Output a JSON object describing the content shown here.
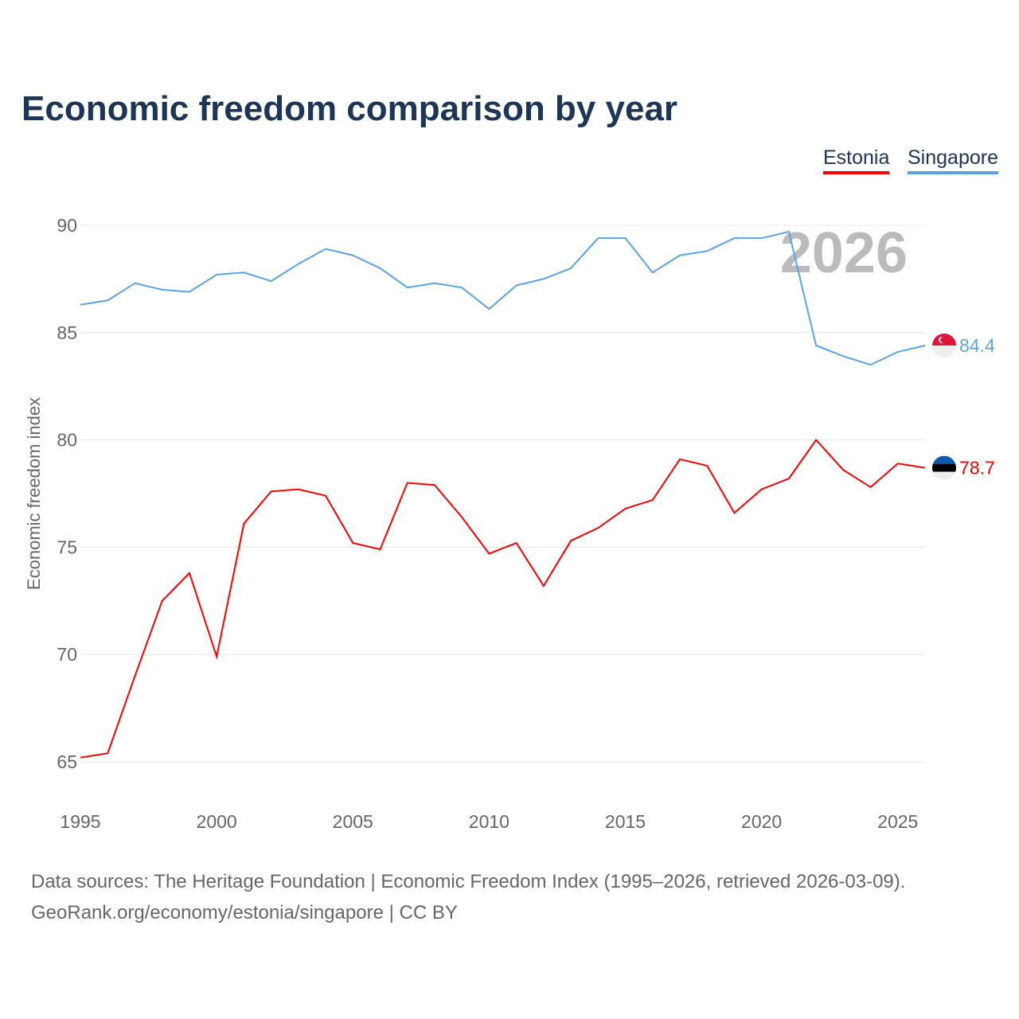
{
  "chart_data": {
    "type": "line",
    "title": "Economic freedom comparison by year",
    "xlabel": "",
    "ylabel": "Economic freedom index",
    "xlim": [
      1995,
      2026
    ],
    "ylim": [
      65,
      90
    ],
    "yticks": [
      65,
      70,
      75,
      80,
      85,
      90
    ],
    "xticks": [
      1995,
      2000,
      2005,
      2010,
      2015,
      2020,
      2025
    ],
    "grid": true,
    "legend_position": "top-right",
    "year_annotation": "2026",
    "x": [
      1995,
      1996,
      1997,
      1998,
      1999,
      2000,
      2001,
      2002,
      2003,
      2004,
      2005,
      2006,
      2007,
      2008,
      2009,
      2010,
      2011,
      2012,
      2013,
      2014,
      2015,
      2016,
      2017,
      2018,
      2019,
      2020,
      2021,
      2022,
      2023,
      2024,
      2025,
      2026
    ],
    "series": [
      {
        "name": "Estonia",
        "color": "#ff0000",
        "end_label": "78.7",
        "values": [
          65.2,
          65.4,
          69.0,
          72.5,
          73.8,
          69.9,
          76.1,
          77.6,
          77.7,
          77.4,
          75.2,
          74.9,
          78.0,
          77.9,
          76.4,
          74.7,
          75.2,
          73.2,
          75.3,
          75.9,
          76.8,
          77.2,
          79.1,
          78.8,
          76.6,
          77.7,
          78.2,
          80.0,
          78.6,
          77.8,
          78.9,
          78.7
        ]
      },
      {
        "name": "Singapore",
        "color": "#5ba3e8",
        "end_label": "84.4",
        "values": [
          86.3,
          86.5,
          87.3,
          87.0,
          86.9,
          87.7,
          87.8,
          87.4,
          88.2,
          88.9,
          88.6,
          88.0,
          87.1,
          87.3,
          87.1,
          86.1,
          87.2,
          87.5,
          88.0,
          89.4,
          89.4,
          87.8,
          88.6,
          88.8,
          89.4,
          89.4,
          89.7,
          84.4,
          83.9,
          83.5,
          84.1,
          84.4
        ]
      }
    ]
  },
  "footer": {
    "line1": "Data sources: The Heritage Foundation | Economic Freedom Index (1995–2026, retrieved 2026-03-09).",
    "line2": "GeoRank.org/economy/estonia/singapore | CC BY"
  }
}
